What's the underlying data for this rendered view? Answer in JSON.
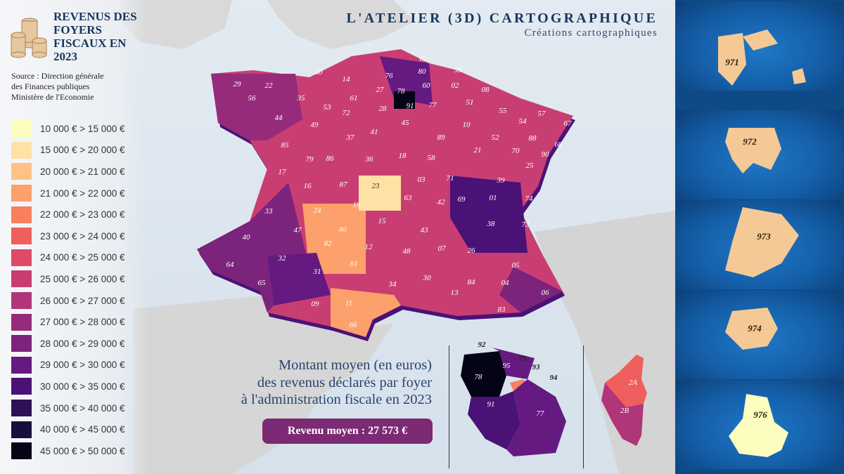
{
  "header": {
    "title": "REVENUS DES FOYERS FISCAUX EN 2023",
    "source": [
      "Source : Direction générale",
      "des Finances publiques",
      "Ministère de l'Economie"
    ]
  },
  "branding": {
    "title": "L'ATELIER (3D) CARTOGRAPHIQUE",
    "subtitle": "Créations cartographiques"
  },
  "legend": [
    {
      "label": "10 000 € > 15 000 €",
      "color": "#fcfdbf"
    },
    {
      "label": "15 000 € > 20 000 €",
      "color": "#fee1a5"
    },
    {
      "label": "20 000 € > 21 000 €",
      "color": "#fec287"
    },
    {
      "label": "21 000 € > 22 000 €",
      "color": "#fca06c"
    },
    {
      "label": "22 000 € > 23 000 €",
      "color": "#f8805f"
    },
    {
      "label": "23 000 € > 24 000 €",
      "color": "#ef5f5d"
    },
    {
      "label": "24 000 € > 25 000 €",
      "color": "#de4a68"
    },
    {
      "label": "25 000 € > 26 000 €",
      "color": "#c93e72"
    },
    {
      "label": "26 000 € > 27 000 €",
      "color": "#b03579"
    },
    {
      "label": "27 000 € > 28 000 €",
      "color": "#962b7b"
    },
    {
      "label": "28 000 € > 29 000 €",
      "color": "#7c237c"
    },
    {
      "label": "29 000 € > 30 000 €",
      "color": "#641a80"
    },
    {
      "label": "30 000 € > 35 000 €",
      "color": "#4a1277"
    },
    {
      "label": "35 000 € > 40 000 €",
      "color": "#2d1156"
    },
    {
      "label": "40 000 € > 45 000 €",
      "color": "#180f3d"
    },
    {
      "label": "45 000 € > 50 000 €",
      "color": "#050416"
    }
  ],
  "caption": [
    "Montant moyen (en euros)",
    "des revenus déclarés par foyer",
    "à l'administration fiscale en 2023"
  ],
  "average": "Revenu moyen : 27 573 €",
  "departments": [
    {
      "code": "29",
      "tone": "#962b7b"
    },
    {
      "code": "22",
      "tone": "#962b7b"
    },
    {
      "code": "56",
      "tone": "#962b7b"
    },
    {
      "code": "35",
      "tone": "#641a80"
    },
    {
      "code": "50",
      "tone": "#962b7b"
    },
    {
      "code": "14",
      "tone": "#962b7b"
    },
    {
      "code": "76",
      "tone": "#962b7b"
    },
    {
      "code": "27",
      "tone": "#7c237c"
    },
    {
      "code": "62",
      "tone": "#f8805f"
    },
    {
      "code": "80",
      "tone": "#ef5f5d"
    },
    {
      "code": "59",
      "tone": "#de4a68"
    },
    {
      "code": "60",
      "tone": "#641a80"
    },
    {
      "code": "02",
      "tone": "#ef5f5d"
    },
    {
      "code": "08",
      "tone": "#f8805f"
    },
    {
      "code": "78",
      "tone": "#050416"
    },
    {
      "code": "91",
      "tone": "#4a1277"
    },
    {
      "code": "77",
      "tone": "#641a80"
    },
    {
      "code": "61",
      "tone": "#ef5f5d"
    },
    {
      "code": "53",
      "tone": "#c93e72"
    },
    {
      "code": "72",
      "tone": "#c93e72"
    },
    {
      "code": "28",
      "tone": "#962b7b"
    },
    {
      "code": "51",
      "tone": "#7c237c"
    },
    {
      "code": "55",
      "tone": "#ef5f5d"
    },
    {
      "code": "57",
      "tone": "#b03579"
    },
    {
      "code": "67",
      "tone": "#641a80"
    },
    {
      "code": "44",
      "tone": "#641a80"
    },
    {
      "code": "49",
      "tone": "#c93e72"
    },
    {
      "code": "37",
      "tone": "#b03579"
    },
    {
      "code": "41",
      "tone": "#b03579"
    },
    {
      "code": "45",
      "tone": "#962b7b"
    },
    {
      "code": "10",
      "tone": "#de4a68"
    },
    {
      "code": "54",
      "tone": "#c93e72"
    },
    {
      "code": "88",
      "tone": "#de4a68"
    },
    {
      "code": "52",
      "tone": "#f8805f"
    },
    {
      "code": "89",
      "tone": "#de4a68"
    },
    {
      "code": "85",
      "tone": "#c93e72"
    },
    {
      "code": "79",
      "tone": "#de4a68"
    },
    {
      "code": "86",
      "tone": "#de4a68"
    },
    {
      "code": "36",
      "tone": "#f8805f"
    },
    {
      "code": "18",
      "tone": "#f8805f"
    },
    {
      "code": "58",
      "tone": "#f8805f"
    },
    {
      "code": "21",
      "tone": "#962b7b"
    },
    {
      "code": "70",
      "tone": "#ef5f5d"
    },
    {
      "code": "90",
      "tone": "#962b7b"
    },
    {
      "code": "68",
      "tone": "#641a80"
    },
    {
      "code": "25",
      "tone": "#7c237c"
    },
    {
      "code": "17",
      "tone": "#c93e72"
    },
    {
      "code": "16",
      "tone": "#ef5f5d"
    },
    {
      "code": "87",
      "tone": "#ef5f5d"
    },
    {
      "code": "23",
      "tone": "#fee1a5"
    },
    {
      "code": "03",
      "tone": "#ef5f5d"
    },
    {
      "code": "71",
      "tone": "#de4a68"
    },
    {
      "code": "39",
      "tone": "#c93e72"
    },
    {
      "code": "63",
      "tone": "#c93e72"
    },
    {
      "code": "42",
      "tone": "#c93e72"
    },
    {
      "code": "69",
      "tone": "#4a1277"
    },
    {
      "code": "01",
      "tone": "#4a1277"
    },
    {
      "code": "74",
      "tone": "#2d1156"
    },
    {
      "code": "33",
      "tone": "#7c237c"
    },
    {
      "code": "24",
      "tone": "#fca06c"
    },
    {
      "code": "19",
      "tone": "#ef5f5d"
    },
    {
      "code": "15",
      "tone": "#fca06c"
    },
    {
      "code": "43",
      "tone": "#fca06c"
    },
    {
      "code": "38",
      "tone": "#641a80"
    },
    {
      "code": "73",
      "tone": "#641a80"
    },
    {
      "code": "40",
      "tone": "#b03579"
    },
    {
      "code": "47",
      "tone": "#fca06c"
    },
    {
      "code": "46",
      "tone": "#f8805f"
    },
    {
      "code": "82",
      "tone": "#ef5f5d"
    },
    {
      "code": "12",
      "tone": "#ef5f5d"
    },
    {
      "code": "48",
      "tone": "#fca06c"
    },
    {
      "code": "07",
      "tone": "#ef5f5d"
    },
    {
      "code": "26",
      "tone": "#de4a68"
    },
    {
      "code": "05",
      "tone": "#de4a68"
    },
    {
      "code": "64",
      "tone": "#962b7b"
    },
    {
      "code": "32",
      "tone": "#ef5f5d"
    },
    {
      "code": "81",
      "tone": "#de4a68"
    },
    {
      "code": "31",
      "tone": "#641a80"
    },
    {
      "code": "65",
      "tone": "#f8805f"
    },
    {
      "code": "34",
      "tone": "#c93e72"
    },
    {
      "code": "30",
      "tone": "#de4a68"
    },
    {
      "code": "84",
      "tone": "#c93e72"
    },
    {
      "code": "04",
      "tone": "#de4a68"
    },
    {
      "code": "13",
      "tone": "#b03579"
    },
    {
      "code": "06",
      "tone": "#7c237c"
    },
    {
      "code": "83",
      "tone": "#b03579"
    },
    {
      "code": "09",
      "tone": "#fca06c"
    },
    {
      "code": "11",
      "tone": "#fca06c"
    },
    {
      "code": "66",
      "tone": "#fca06c"
    }
  ],
  "idf_inset": [
    "92",
    "95",
    "75",
    "93",
    "94",
    "78",
    "91",
    "77"
  ],
  "corsica": [
    "2A",
    "2B"
  ],
  "overseas": [
    "971",
    "972",
    "973",
    "974",
    "976"
  ]
}
